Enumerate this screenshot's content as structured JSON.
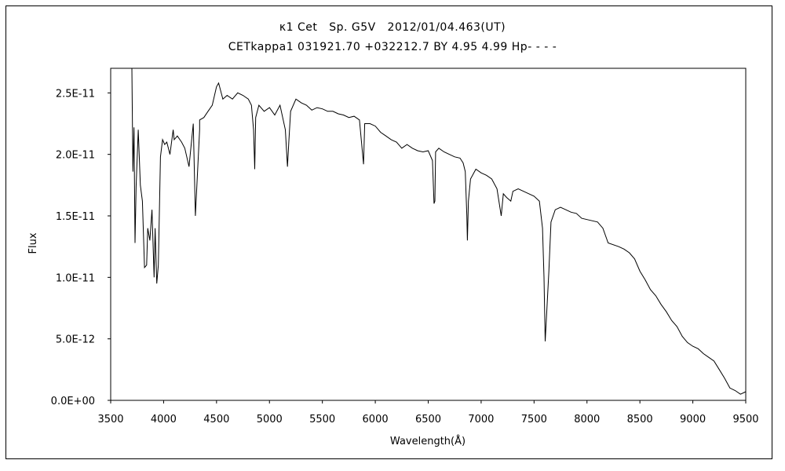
{
  "chart_data": {
    "type": "line",
    "title": "κ1 Cet   Sp. G5V   2012/01/04.463(UT)",
    "subtitle": "CETkappa1 031921.70 +032212.7 BY 4.95 4.99 Hp- - - -",
    "xlabel": "Wavelength(Å)",
    "ylabel": "Flux",
    "xlim": [
      3500,
      9500
    ],
    "ylim": [
      0,
      2.7e-11
    ],
    "grid": false,
    "x_ticks": [
      {
        "value": 3500,
        "label": "3500"
      },
      {
        "value": 4000,
        "label": "4000"
      },
      {
        "value": 4500,
        "label": "4500"
      },
      {
        "value": 5000,
        "label": "5000"
      },
      {
        "value": 5500,
        "label": "5500"
      },
      {
        "value": 6000,
        "label": "6000"
      },
      {
        "value": 6500,
        "label": "6500"
      },
      {
        "value": 7000,
        "label": "7000"
      },
      {
        "value": 7500,
        "label": "7500"
      },
      {
        "value": 8000,
        "label": "8000"
      },
      {
        "value": 8500,
        "label": "8500"
      },
      {
        "value": 9000,
        "label": "9000"
      },
      {
        "value": 9500,
        "label": "9500"
      }
    ],
    "y_ticks": [
      {
        "value": 0,
        "label": "0.0E+00"
      },
      {
        "value": 5e-12,
        "label": "5.0E-12"
      },
      {
        "value": 1e-11,
        "label": "1.0E-11"
      },
      {
        "value": 1.5e-11,
        "label": "1.5E-11"
      },
      {
        "value": 2e-11,
        "label": "2.0E-11"
      },
      {
        "value": 2.5e-11,
        "label": "2.5E-11"
      }
    ],
    "line_color": "#000000",
    "series": [
      {
        "x": [
          3700,
          3710,
          3720,
          3730,
          3740,
          3760,
          3780,
          3800,
          3820,
          3840,
          3850,
          3870,
          3890,
          3910,
          3920,
          3935,
          3950,
          3970,
          3990,
          4010,
          4030,
          4060,
          4090,
          4100,
          4130,
          4170,
          4200,
          4240,
          4280,
          4300,
          4340,
          4340,
          4380,
          4420,
          4460,
          4500,
          4520,
          4560,
          4600,
          4650,
          4700,
          4750,
          4800,
          4830,
          4850,
          4861,
          4870,
          4900,
          4950,
          5000,
          5050,
          5100,
          5150,
          5170,
          5183,
          5200,
          5250,
          5300,
          5350,
          5400,
          5450,
          5500,
          5550,
          5600,
          5650,
          5700,
          5750,
          5800,
          5850,
          5889,
          5900,
          5950,
          6000,
          6050,
          6100,
          6150,
          6200,
          6250,
          6300,
          6350,
          6400,
          6450,
          6500,
          6540,
          6555,
          6563,
          6570,
          6600,
          6650,
          6700,
          6750,
          6800,
          6830,
          6850,
          6865,
          6870,
          6880,
          6900,
          6950,
          7000,
          7050,
          7100,
          7150,
          7190,
          7210,
          7240,
          7280,
          7300,
          7350,
          7400,
          7450,
          7500,
          7550,
          7580,
          7594,
          7605,
          7620,
          7640,
          7660,
          7700,
          7750,
          7800,
          7850,
          7900,
          7950,
          8000,
          8100,
          8150,
          8200,
          8300,
          8350,
          8400,
          8450,
          8500,
          8550,
          8600,
          8650,
          8700,
          8750,
          8800,
          8850,
          8900,
          8950,
          9000,
          9050,
          9100,
          9150,
          9200,
          9250,
          9300,
          9350,
          9400,
          9450,
          9500
        ],
        "y": [
          2.7e-11,
          1.86e-11,
          2.22e-11,
          1.28e-11,
          1.74e-11,
          2.2e-11,
          1.75e-11,
          1.62e-11,
          1.08e-11,
          1.1e-11,
          1.4e-11,
          1.3e-11,
          1.55e-11,
          1e-11,
          1.4e-11,
          9.5e-12,
          1.1e-11,
          1.98e-11,
          2.12e-11,
          2.08e-11,
          2.1e-11,
          2e-11,
          2.2e-11,
          2.12e-11,
          2.15e-11,
          2.1e-11,
          2.05e-11,
          1.9e-11,
          2.25e-11,
          1.5e-11,
          2.2e-11,
          2.28e-11,
          2.3e-11,
          2.35e-11,
          2.4e-11,
          2.55e-11,
          2.58e-11,
          2.45e-11,
          2.48e-11,
          2.45e-11,
          2.5e-11,
          2.48e-11,
          2.45e-11,
          2.4e-11,
          2.2e-11,
          1.88e-11,
          2.3e-11,
          2.4e-11,
          2.35e-11,
          2.38e-11,
          2.32e-11,
          2.4e-11,
          2.2e-11,
          1.9e-11,
          2.1e-11,
          2.35e-11,
          2.45e-11,
          2.42e-11,
          2.4e-11,
          2.36e-11,
          2.38e-11,
          2.37e-11,
          2.35e-11,
          2.35e-11,
          2.33e-11,
          2.32e-11,
          2.3e-11,
          2.31e-11,
          2.28e-11,
          1.92e-11,
          2.25e-11,
          2.25e-11,
          2.23e-11,
          2.18e-11,
          2.15e-11,
          2.12e-11,
          2.1e-11,
          2.05e-11,
          2.08e-11,
          2.05e-11,
          2.03e-11,
          2.02e-11,
          2.03e-11,
          1.95e-11,
          1.6e-11,
          1.62e-11,
          2.02e-11,
          2.05e-11,
          2.02e-11,
          2e-11,
          1.98e-11,
          1.97e-11,
          1.93e-11,
          1.86e-11,
          1.5e-11,
          1.3e-11,
          1.62e-11,
          1.8e-11,
          1.88e-11,
          1.85e-11,
          1.83e-11,
          1.8e-11,
          1.72e-11,
          1.5e-11,
          1.68e-11,
          1.65e-11,
          1.62e-11,
          1.7e-11,
          1.72e-11,
          1.7e-11,
          1.68e-11,
          1.66e-11,
          1.62e-11,
          1.4e-11,
          1e-11,
          4.8e-12,
          7.2e-12,
          1.05e-11,
          1.45e-11,
          1.55e-11,
          1.57e-11,
          1.55e-11,
          1.53e-11,
          1.52e-11,
          1.48e-11,
          1.47e-11,
          1.45e-11,
          1.4e-11,
          1.28e-11,
          1.25e-11,
          1.23e-11,
          1.2e-11,
          1.15e-11,
          1.05e-11,
          9.8e-12,
          9e-12,
          8.5e-12,
          7.8e-12,
          7.2e-12,
          6.5e-12,
          6e-12,
          5.2e-12,
          4.7e-12,
          4.4e-12,
          4.2e-12,
          3.8e-12,
          3.5e-12,
          3.2e-12,
          2.5e-12,
          1.8e-12,
          1e-12,
          8e-13,
          5e-13,
          7e-13
        ]
      }
    ]
  }
}
